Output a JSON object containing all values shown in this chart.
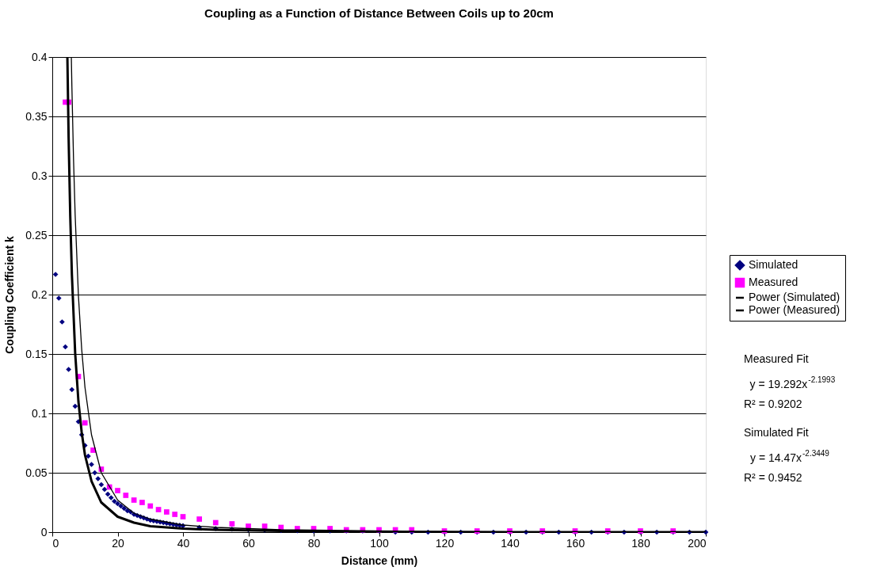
{
  "chart_data": {
    "type": "scatter",
    "title": "Coupling as a Function of Distance Between Coils up to 20cm",
    "xlabel": "Distance (mm)",
    "ylabel": "Coupling Coefficient k",
    "xlim": [
      0,
      200
    ],
    "xticks": [
      0,
      20,
      40,
      60,
      80,
      100,
      120,
      140,
      160,
      180,
      200
    ],
    "ylim": [
      0,
      0.4
    ],
    "yticks": [
      0,
      0.05,
      0.1,
      0.15,
      0.2,
      0.25,
      0.3,
      0.35,
      0.4
    ],
    "grid": "y",
    "legend": "right",
    "series": [
      {
        "name": "Simulated",
        "marker": "diamond",
        "color": "#000080",
        "x": [
          1,
          2,
          3,
          4,
          5,
          6,
          7,
          8,
          9,
          10,
          11,
          12,
          13,
          14,
          15,
          16,
          17,
          18,
          19,
          20,
          21,
          22,
          23,
          24,
          25,
          26,
          27,
          28,
          29,
          30,
          31,
          32,
          33,
          34,
          35,
          36,
          37,
          38,
          39,
          40,
          45,
          50,
          55,
          60,
          65,
          70,
          75,
          80,
          85,
          90,
          95,
          100,
          105,
          110,
          115,
          120,
          125,
          130,
          135,
          140,
          145,
          150,
          155,
          160,
          165,
          170,
          175,
          180,
          185,
          190,
          195,
          200
        ],
        "values": [
          0.217,
          0.197,
          0.177,
          0.156,
          0.137,
          0.12,
          0.106,
          0.093,
          0.082,
          0.073,
          0.064,
          0.057,
          0.05,
          0.045,
          0.04,
          0.036,
          0.032,
          0.029,
          0.026,
          0.024,
          0.022,
          0.02,
          0.018,
          0.017,
          0.015,
          0.014,
          0.013,
          0.012,
          0.011,
          0.01,
          0.0095,
          0.009,
          0.0085,
          0.008,
          0.0075,
          0.007,
          0.0065,
          0.006,
          0.0057,
          0.0054,
          0.004,
          0.003,
          0.0025,
          0.002,
          0.0017,
          0.0014,
          0.0012,
          0.001,
          0.001,
          0.001,
          0.001,
          0.001,
          0,
          0,
          0,
          0,
          0,
          0,
          0,
          0,
          0,
          0,
          0,
          0,
          0,
          0,
          0,
          0,
          0,
          0,
          0,
          0
        ]
      },
      {
        "name": "Measured",
        "marker": "square",
        "color": "#ff00ff",
        "x": [
          4,
          5,
          8,
          10,
          12.5,
          15,
          17.5,
          20,
          22.5,
          25,
          27.5,
          30,
          32.5,
          35,
          37.5,
          40,
          45,
          50,
          55,
          60,
          65,
          70,
          75,
          80,
          85,
          90,
          95,
          100,
          105,
          110,
          120,
          130,
          140,
          150,
          160,
          170,
          180,
          190
        ],
        "values": [
          0.362,
          0.362,
          0.131,
          0.092,
          0.069,
          0.053,
          0.038,
          0.035,
          0.031,
          0.027,
          0.025,
          0.022,
          0.019,
          0.017,
          0.015,
          0.013,
          0.011,
          0.008,
          0.007,
          0.005,
          0.005,
          0.004,
          0.003,
          0.003,
          0.003,
          0.002,
          0.002,
          0.002,
          0.002,
          0.002,
          0.001,
          0.001,
          0.001,
          0.001,
          0.001,
          0.001,
          0.001,
          0.001
        ]
      },
      {
        "name": "Power (Simulated)",
        "type": "line",
        "marker": "none",
        "color": "#000000",
        "x": [
          4.62,
          5,
          5.5,
          6,
          7,
          8,
          9,
          10,
          12,
          15,
          20,
          25,
          30,
          40,
          50,
          70,
          100,
          150,
          200
        ],
        "values": [
          0.4,
          0.332,
          0.266,
          0.217,
          0.151,
          0.11,
          0.084,
          0.065,
          0.043,
          0.025,
          0.013,
          0.008,
          0.005,
          0.003,
          0.002,
          0.001,
          0,
          0,
          0
        ]
      },
      {
        "name": "Power (Measured)",
        "type": "line",
        "marker": "none",
        "color": "#000000",
        "x": [
          5.83,
          6,
          6.5,
          7,
          8,
          9,
          10,
          12,
          15,
          20,
          25,
          30,
          40,
          50,
          70,
          100,
          150,
          200
        ],
        "values": [
          0.4,
          0.375,
          0.314,
          0.267,
          0.199,
          0.154,
          0.122,
          0.082,
          0.05,
          0.027,
          0.016,
          0.011,
          0.006,
          0.004,
          0.002,
          0.001,
          0,
          0
        ]
      }
    ],
    "annotations": [
      "Measured Fit",
      "y = 19.292x$^{-2.1993}$",
      "R² = 0.9202",
      "Simulated Fit",
      "y = 14.47x$^{-2.3449}$",
      "R² = 0.9452"
    ]
  }
}
